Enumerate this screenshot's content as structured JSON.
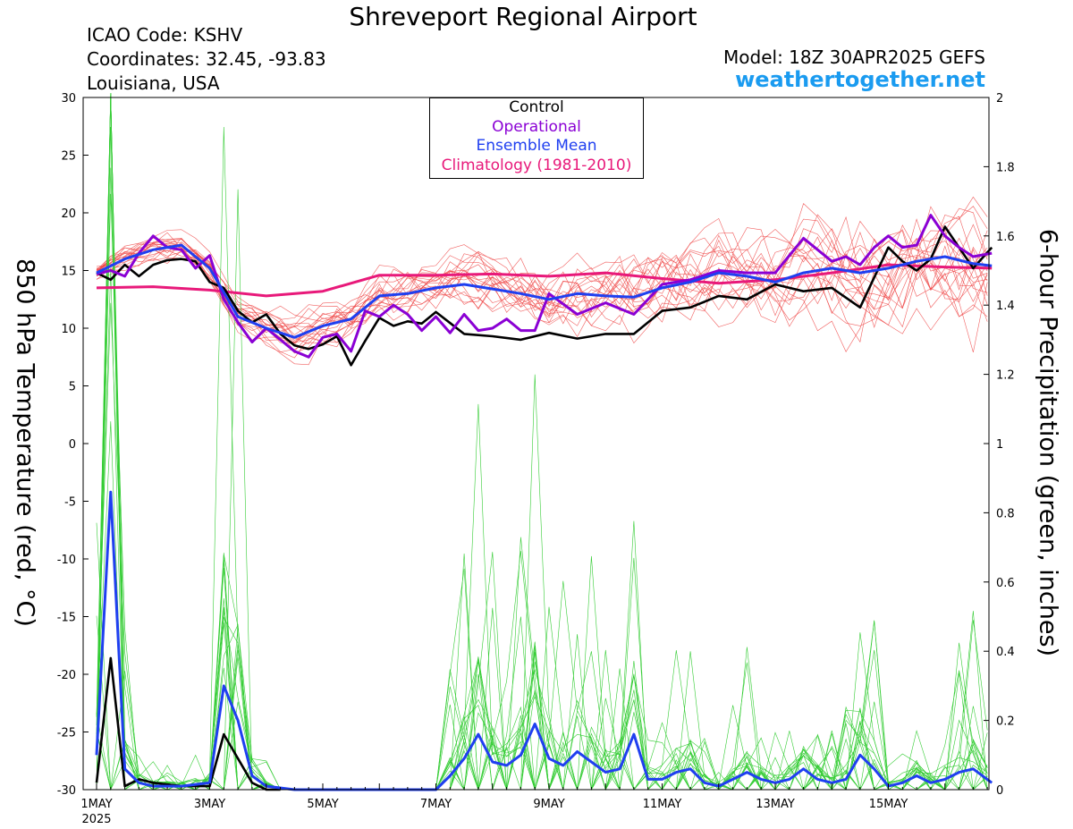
{
  "page": {
    "title": "Shreveport Regional Airport",
    "icao": "ICAO Code: KSHV",
    "coordinates": "Coordinates: 32.45, -93.83",
    "location": "Louisiana, USA",
    "model": "Model: 18Z 30APR2025 GEFS",
    "site": "weathertogether.net"
  },
  "legend": {
    "control": "Control",
    "operational": "Operational",
    "ensemble_mean": "Ensemble Mean",
    "climatology": "Climatology (1981-2010)"
  },
  "colors": {
    "control": "#000000",
    "operational": "#8a00d4",
    "ensemble_mean": "#1f3ff0",
    "climatology": "#e8197a",
    "members_temp": "#ee4444",
    "members_precip": "#33cc33",
    "site": "#1a9bf0"
  },
  "chart_data": {
    "type": "line",
    "ylabel_left": "850 hPa Temperature (red, °C)",
    "ylabel_right": "6-hour Precipitation (green, inches)",
    "ylim_left": [
      -30,
      30
    ],
    "ylim_right": [
      0,
      2
    ],
    "yticks_left": [
      30,
      25,
      20,
      15,
      10,
      5,
      0,
      -5,
      -10,
      -15,
      -20,
      -25,
      -30
    ],
    "yticks_right": [
      2,
      1.8,
      1.6,
      1.4,
      1.2,
      1,
      0.8,
      0.6,
      0.4,
      0.2,
      0
    ],
    "x_range_days": [
      0,
      15.83
    ],
    "x_ticks": [
      {
        "day": 0,
        "label": "1MAY",
        "sub": "2025"
      },
      {
        "day": 2,
        "label": "3MAY",
        "sub": ""
      },
      {
        "day": 4,
        "label": "5MAY",
        "sub": ""
      },
      {
        "day": 6,
        "label": "7MAY",
        "sub": ""
      },
      {
        "day": 8,
        "label": "9MAY",
        "sub": ""
      },
      {
        "day": 10,
        "label": "11MAY",
        "sub": ""
      },
      {
        "day": 12,
        "label": "13MAY",
        "sub": ""
      },
      {
        "day": 14,
        "label": "15MAY",
        "sub": ""
      }
    ],
    "series": [
      {
        "name": "Climatology (1981-2010)",
        "axis": "left",
        "x": [
          0,
          1,
          2,
          3,
          4,
          5,
          6,
          7,
          8,
          9,
          10,
          11,
          12,
          13,
          14,
          15,
          15.83
        ],
        "values": [
          13.5,
          13.6,
          13.3,
          12.8,
          13.2,
          14.6,
          14.6,
          14.7,
          14.5,
          14.8,
          14.3,
          13.9,
          14.2,
          14.8,
          15.5,
          15.3,
          15.2
        ]
      },
      {
        "name": "Control",
        "axis": "left",
        "x": [
          0,
          0.25,
          0.5,
          0.75,
          1,
          1.25,
          1.5,
          1.75,
          2,
          2.25,
          2.5,
          2.75,
          3,
          3.25,
          3.5,
          3.75,
          4,
          4.25,
          4.5,
          4.75,
          5,
          5.25,
          5.5,
          5.75,
          6,
          6.5,
          7,
          7.5,
          8,
          8.5,
          9,
          9.5,
          10,
          10.5,
          11,
          11.5,
          12,
          12.5,
          13,
          13.5,
          14,
          14.25,
          14.5,
          14.75,
          15,
          15.25,
          15.5,
          15.83
        ],
        "values": [
          14.8,
          14.2,
          15.5,
          14.5,
          15.5,
          15.9,
          16.0,
          15.8,
          14.0,
          13.5,
          11.5,
          10.5,
          11.2,
          9.5,
          8.5,
          8.2,
          8.6,
          9.3,
          6.8,
          8.9,
          10.9,
          10.2,
          10.6,
          10.4,
          11.4,
          9.5,
          9.3,
          9.0,
          9.6,
          9.1,
          9.5,
          9.5,
          11.5,
          11.8,
          12.8,
          12.5,
          13.8,
          13.2,
          13.5,
          11.8,
          17.0,
          15.8,
          15.0,
          16.0,
          18.8,
          17.0,
          15.2,
          17.0
        ]
      },
      {
        "name": "Operational",
        "axis": "left",
        "x": [
          0,
          0.25,
          0.5,
          0.75,
          1,
          1.25,
          1.5,
          1.75,
          2,
          2.25,
          2.5,
          2.75,
          3,
          3.25,
          3.5,
          3.75,
          4,
          4.25,
          4.5,
          4.75,
          5,
          5.25,
          5.5,
          5.75,
          6,
          6.25,
          6.5,
          6.75,
          7,
          7.25,
          7.5,
          7.75,
          8,
          8.5,
          9,
          9.5,
          10,
          10.5,
          11,
          11.5,
          12,
          12.5,
          13,
          13.25,
          13.5,
          13.75,
          14,
          14.25,
          14.5,
          14.75,
          15,
          15.25,
          15.5,
          15.83
        ],
        "values": [
          14.7,
          15.0,
          14.5,
          16.5,
          18.0,
          17.0,
          16.8,
          15.2,
          16.3,
          12.5,
          10.5,
          8.8,
          10.0,
          9.0,
          8.0,
          7.5,
          9.2,
          9.5,
          8.0,
          11.5,
          11.0,
          12.0,
          11.2,
          9.8,
          11.0,
          9.6,
          11.2,
          9.8,
          10.0,
          10.8,
          9.8,
          9.8,
          13.0,
          11.2,
          12.2,
          11.2,
          13.8,
          14.2,
          15.0,
          14.8,
          14.8,
          17.8,
          15.8,
          16.2,
          15.5,
          17.0,
          18.0,
          17.0,
          17.2,
          19.8,
          18.0,
          17.0,
          16.2,
          16.5
        ]
      },
      {
        "name": "Ensemble Mean",
        "axis": "left",
        "x": [
          0,
          0.5,
          1,
          1.5,
          2,
          2.5,
          3,
          3.5,
          4,
          4.5,
          5,
          5.5,
          6,
          6.5,
          7,
          7.5,
          8,
          8.5,
          9,
          9.5,
          10,
          10.5,
          11,
          11.5,
          12,
          12.5,
          13,
          13.5,
          14,
          14.5,
          15,
          15.5,
          15.83
        ],
        "values": [
          14.8,
          16.0,
          16.8,
          17.2,
          15.2,
          11.0,
          10.0,
          9.2,
          10.2,
          10.8,
          12.8,
          13.0,
          13.5,
          13.8,
          13.4,
          13.0,
          12.5,
          13.0,
          12.8,
          12.7,
          13.5,
          14.0,
          14.8,
          14.5,
          14.0,
          14.8,
          15.2,
          14.8,
          15.2,
          15.8,
          16.2,
          15.6,
          15.4
        ]
      },
      {
        "name": "Control",
        "axis": "right",
        "x": [
          0,
          0.25,
          0.5,
          0.75,
          1,
          1.5,
          2,
          2.25,
          2.5,
          2.75,
          3,
          3.25
        ],
        "values": [
          0.02,
          0.38,
          0.01,
          0.03,
          0.02,
          0.01,
          0.01,
          0.16,
          0.09,
          0.02,
          0,
          0
        ]
      },
      {
        "name": "Ensemble Mean",
        "axis": "right",
        "x": [
          0,
          0.25,
          0.5,
          0.75,
          1,
          1.5,
          2,
          2.25,
          2.5,
          2.75,
          3,
          3.5,
          4,
          4.5,
          5,
          5.5,
          6,
          6.25,
          6.5,
          6.75,
          7,
          7.25,
          7.5,
          7.75,
          8,
          8.25,
          8.5,
          8.75,
          9,
          9.25,
          9.5,
          9.75,
          10,
          10.25,
          10.5,
          10.75,
          11,
          11.25,
          11.5,
          11.75,
          12,
          12.25,
          12.5,
          12.75,
          13,
          13.25,
          13.5,
          13.75,
          14,
          14.25,
          14.5,
          14.75,
          15,
          15.25,
          15.5,
          15.83
        ],
        "values": [
          0.1,
          0.86,
          0.06,
          0.02,
          0.01,
          0.01,
          0.02,
          0.3,
          0.2,
          0.04,
          0.01,
          0,
          0,
          0,
          0,
          0,
          0,
          0.04,
          0.09,
          0.16,
          0.08,
          0.07,
          0.1,
          0.19,
          0.09,
          0.07,
          0.11,
          0.08,
          0.05,
          0.06,
          0.16,
          0.03,
          0.03,
          0.05,
          0.06,
          0.02,
          0.01,
          0.03,
          0.05,
          0.03,
          0.02,
          0.03,
          0.06,
          0.03,
          0.02,
          0.03,
          0.1,
          0.06,
          0.01,
          0.02,
          0.04,
          0.02,
          0.03,
          0.05,
          0.06,
          0.02
        ]
      }
    ]
  }
}
